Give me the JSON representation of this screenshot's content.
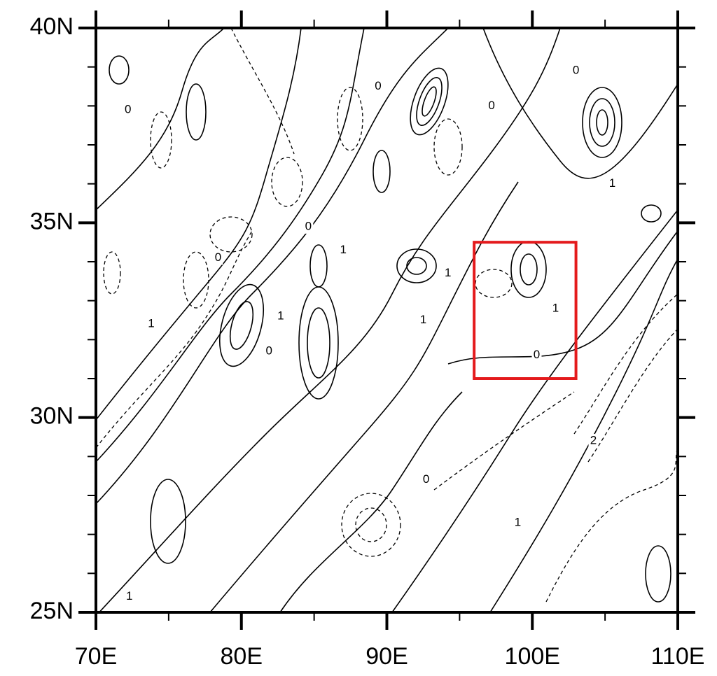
{
  "chart_data": {
    "type": "contour-map",
    "xlim": [
      70,
      110
    ],
    "ylim": [
      25,
      40
    ],
    "xticks": [
      {
        "value": 70,
        "label": "70E"
      },
      {
        "value": 80,
        "label": "80E"
      },
      {
        "value": 90,
        "label": "90E"
      },
      {
        "value": 100,
        "label": "100E"
      },
      {
        "value": 110,
        "label": "110E"
      }
    ],
    "yticks": [
      {
        "value": 25,
        "label": "25N"
      },
      {
        "value": 30,
        "label": "30N"
      },
      {
        "value": 35,
        "label": "35N"
      },
      {
        "value": 40,
        "label": "40N"
      }
    ],
    "minor_xticks": [
      75,
      85,
      95,
      105
    ],
    "minor_yticks": [
      26,
      27,
      28,
      29,
      31,
      32,
      33,
      34,
      36,
      37,
      38,
      39
    ],
    "highlight_box": {
      "lon": [
        96,
        103
      ],
      "lat": [
        31,
        34.5
      ],
      "color": "#e41a1c"
    },
    "contour_labels": [
      {
        "text": "0",
        "lon": 72.2,
        "lat": 37.9
      },
      {
        "text": "0",
        "lon": 89.4,
        "lat": 38.5
      },
      {
        "text": "0",
        "lon": 97.2,
        "lat": 38.0
      },
      {
        "text": "0",
        "lon": 103.0,
        "lat": 38.9
      },
      {
        "text": "1",
        "lon": 105.5,
        "lat": 36.0
      },
      {
        "text": "0",
        "lon": 84.6,
        "lat": 34.9
      },
      {
        "text": "1",
        "lon": 87.0,
        "lat": 34.3
      },
      {
        "text": "0",
        "lon": 78.4,
        "lat": 34.1
      },
      {
        "text": "1",
        "lon": 94.2,
        "lat": 33.7
      },
      {
        "text": "1",
        "lon": 73.8,
        "lat": 32.4
      },
      {
        "text": "1",
        "lon": 82.7,
        "lat": 32.6
      },
      {
        "text": "0",
        "lon": 81.9,
        "lat": 31.7
      },
      {
        "text": "1",
        "lon": 92.5,
        "lat": 32.5
      },
      {
        "text": "1",
        "lon": 101.6,
        "lat": 32.8
      },
      {
        "text": "0",
        "lon": 100.3,
        "lat": 31.6
      },
      {
        "text": "0",
        "lon": 92.7,
        "lat": 28.4
      },
      {
        "text": "2",
        "lon": 104.2,
        "lat": 29.4
      },
      {
        "text": "1",
        "lon": 99.0,
        "lat": 27.3
      },
      {
        "text": "1",
        "lon": 72.3,
        "lat": 25.4
      }
    ]
  }
}
